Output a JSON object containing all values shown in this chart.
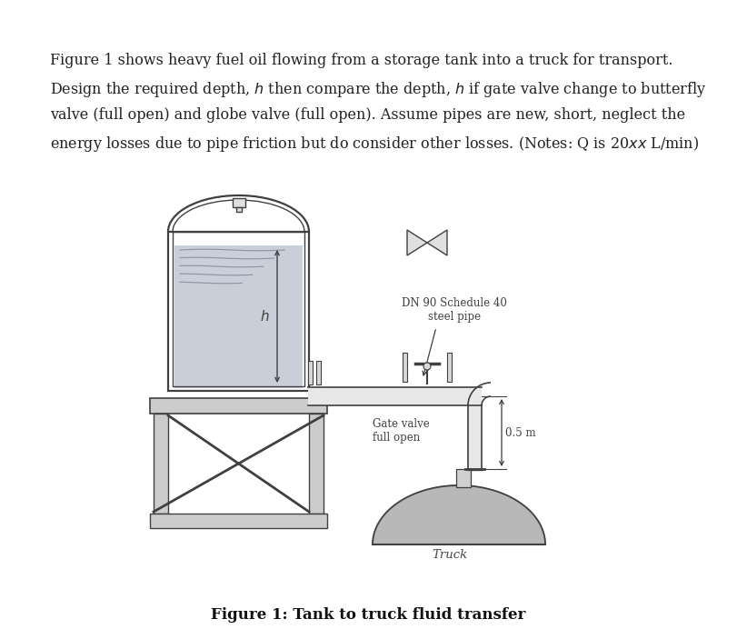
{
  "title": "Figure 1: Tank to truck fluid transfer",
  "paragraph_lines": [
    "Figure 1 shows heavy fuel oil flowing from a storage tank into a truck for transport.",
    "Design the required depth, $h$ then compare the depth, $h$ if gate valve change to butterfly",
    "valve (full open) and globe valve (full open). Assume pipes are new, short, neglect the",
    "energy losses due to pipe friction but do consider other losses. (Notes: Q is 20$xx$ L/min)"
  ],
  "label_pipe": "DN 90 Schedule 40\nsteel pipe",
  "label_valve": "Gate valve\nfull open",
  "label_dim": "0.5 m",
  "label_truck": "Truck",
  "label_h": "$h$",
  "bg_color": "#ffffff",
  "lc": "#404040",
  "fluid_color": "#c8cfd8",
  "tank_fill": "#f2f2f2",
  "truck_color": "#b8b8b8",
  "shelf_color": "#cccccc",
  "pipe_fill": "#e8e8e8",
  "text_color": "#222222",
  "font_size_para": 11.5,
  "font_size_label": 8.5,
  "font_size_caption": 12
}
